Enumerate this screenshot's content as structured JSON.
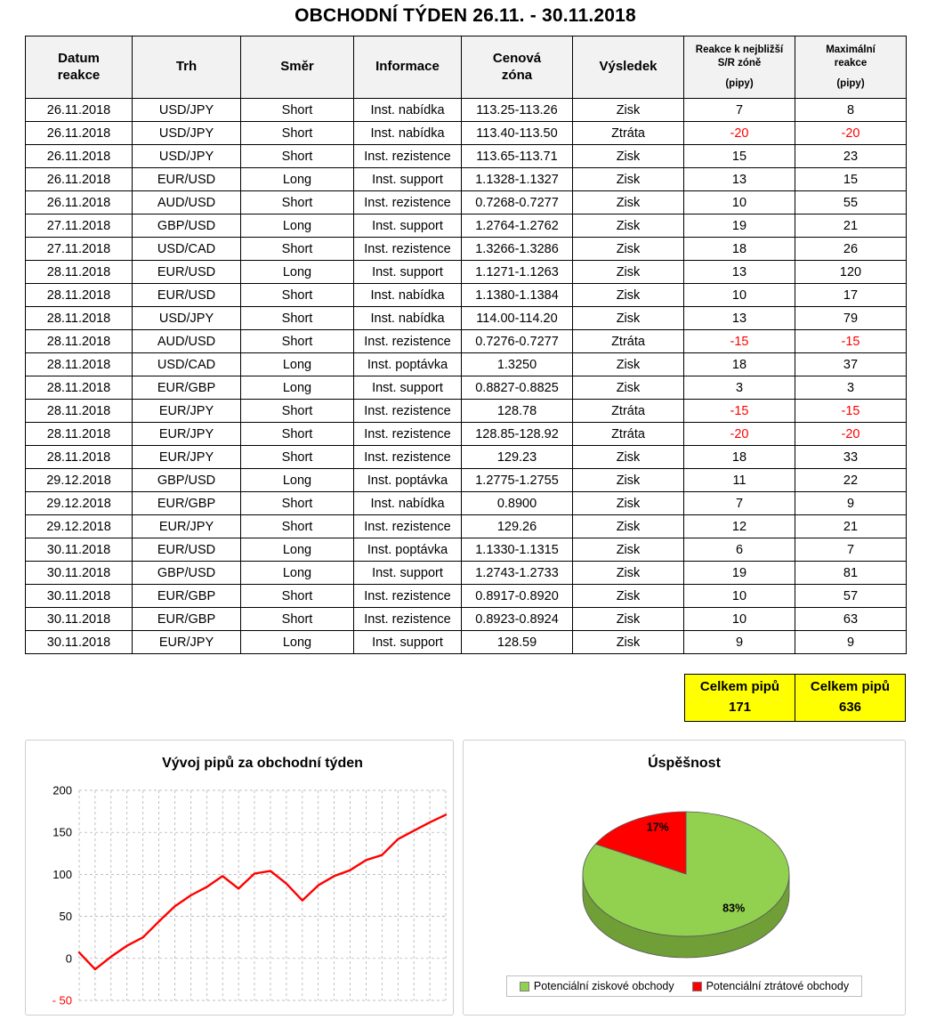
{
  "page_title": "OBCHODNÍ TÝDEN 26.11. - 30.11.2018",
  "table": {
    "headers": [
      {
        "lines": [
          "Datum",
          "reakce"
        ],
        "small": false
      },
      {
        "lines": [
          "Trh"
        ],
        "small": false
      },
      {
        "lines": [
          "Směr"
        ],
        "small": false
      },
      {
        "lines": [
          "Informace"
        ],
        "small": false
      },
      {
        "lines": [
          "Cenová",
          "zóna"
        ],
        "small": false
      },
      {
        "lines": [
          "Výsledek"
        ],
        "small": false
      },
      {
        "lines": [
          "Reakce k nejbližší",
          "S/R zóně"
        ],
        "sub": "(pipy)",
        "small": true
      },
      {
        "lines": [
          "Maximální",
          "reakce"
        ],
        "sub": "(pipy)",
        "small": true
      }
    ],
    "rows": [
      [
        "26.11.2018",
        "USD/JPY",
        "Short",
        "Inst. nabídka",
        "113.25-113.26",
        "Zisk",
        7,
        8
      ],
      [
        "26.11.2018",
        "USD/JPY",
        "Short",
        "Inst. nabídka",
        "113.40-113.50",
        "Ztráta",
        -20,
        -20
      ],
      [
        "26.11.2018",
        "USD/JPY",
        "Short",
        "Inst. rezistence",
        "113.65-113.71",
        "Zisk",
        15,
        23
      ],
      [
        "26.11.2018",
        "EUR/USD",
        "Long",
        "Inst. support",
        "1.1328-1.1327",
        "Zisk",
        13,
        15
      ],
      [
        "26.11.2018",
        "AUD/USD",
        "Short",
        "Inst. rezistence",
        "0.7268-0.7277",
        "Zisk",
        10,
        55
      ],
      [
        "27.11.2018",
        "GBP/USD",
        "Long",
        "Inst. support",
        "1.2764-1.2762",
        "Zisk",
        19,
        21
      ],
      [
        "27.11.2018",
        "USD/CAD",
        "Short",
        "Inst. rezistence",
        "1.3266-1.3286",
        "Zisk",
        18,
        26
      ],
      [
        "28.11.2018",
        "EUR/USD",
        "Long",
        "Inst. support",
        "1.1271-1.1263",
        "Zisk",
        13,
        120
      ],
      [
        "28.11.2018",
        "EUR/USD",
        "Short",
        "Inst. nabídka",
        "1.1380-1.1384",
        "Zisk",
        10,
        17
      ],
      [
        "28.11.2018",
        "USD/JPY",
        "Short",
        "Inst. nabídka",
        "114.00-114.20",
        "Zisk",
        13,
        79
      ],
      [
        "28.11.2018",
        "AUD/USD",
        "Short",
        "Inst. rezistence",
        "0.7276-0.7277",
        "Ztráta",
        -15,
        -15
      ],
      [
        "28.11.2018",
        "USD/CAD",
        "Long",
        "Inst. poptávka",
        "1.3250",
        "Zisk",
        18,
        37
      ],
      [
        "28.11.2018",
        "EUR/GBP",
        "Long",
        "Inst. support",
        "0.8827-0.8825",
        "Zisk",
        3,
        3
      ],
      [
        "28.11.2018",
        "EUR/JPY",
        "Short",
        "Inst. rezistence",
        "128.78",
        "Ztráta",
        -15,
        -15
      ],
      [
        "28.11.2018",
        "EUR/JPY",
        "Short",
        "Inst. rezistence",
        "128.85-128.92",
        "Ztráta",
        -20,
        -20
      ],
      [
        "28.11.2018",
        "EUR/JPY",
        "Short",
        "Inst. rezistence",
        "129.23",
        "Zisk",
        18,
        33
      ],
      [
        "29.12.2018",
        "GBP/USD",
        "Long",
        "Inst. poptávka",
        "1.2775-1.2755",
        "Zisk",
        11,
        22
      ],
      [
        "29.12.2018",
        "EUR/GBP",
        "Short",
        "Inst. nabídka",
        "0.8900",
        "Zisk",
        7,
        9
      ],
      [
        "29.12.2018",
        "EUR/JPY",
        "Short",
        "Inst. rezistence",
        "129.26",
        "Zisk",
        12,
        21
      ],
      [
        "30.11.2018",
        "EUR/USD",
        "Long",
        "Inst. poptávka",
        "1.1330-1.1315",
        "Zisk",
        6,
        7
      ],
      [
        "30.11.2018",
        "GBP/USD",
        "Long",
        "Inst. support",
        "1.2743-1.2733",
        "Zisk",
        19,
        81
      ],
      [
        "30.11.2018",
        "EUR/GBP",
        "Short",
        "Inst. rezistence",
        "0.8917-0.8920",
        "Zisk",
        10,
        57
      ],
      [
        "30.11.2018",
        "EUR/GBP",
        "Short",
        "Inst. rezistence",
        "0.8923-0.8924",
        "Zisk",
        10,
        63
      ],
      [
        "30.11.2018",
        "EUR/JPY",
        "Long",
        "Inst. support",
        "128.59",
        "Zisk",
        9,
        9
      ]
    ]
  },
  "totals": {
    "reaction": {
      "label": "Celkem pipů",
      "value": "171"
    },
    "max": {
      "label": "Celkem pipů",
      "value": "636"
    }
  },
  "chart_data": [
    {
      "type": "line",
      "title": "Vývoj pipů za obchodní týden",
      "x": [
        1,
        2,
        3,
        4,
        5,
        6,
        7,
        8,
        9,
        10,
        11,
        12,
        13,
        14,
        15,
        16,
        17,
        18,
        19,
        20,
        21,
        22,
        23,
        24
      ],
      "values": [
        7,
        -13,
        2,
        15,
        25,
        44,
        62,
        75,
        85,
        98,
        83,
        101,
        104,
        89,
        69,
        87,
        98,
        105,
        117,
        123,
        142,
        152,
        162,
        171
      ],
      "ylim": [
        -50,
        200
      ],
      "yticks": [
        200,
        150,
        100,
        50,
        0,
        -50
      ],
      "xlabel": "",
      "ylabel": "",
      "line_color": "#ff0000",
      "grid": "dashed",
      "legend_position": "none"
    },
    {
      "type": "pie",
      "title": "Úspěšnost",
      "style": "3d",
      "side_color": "#6f9f36",
      "slices": [
        {
          "label": "Potenciální ziskové obchody",
          "value": 83,
          "color": "#92d050",
          "text": "83%"
        },
        {
          "label": "Potenciální ztrátové obchody",
          "value": 17,
          "color": "#ff0000",
          "text": "17%"
        }
      ],
      "legend_position": "bottom"
    }
  ]
}
